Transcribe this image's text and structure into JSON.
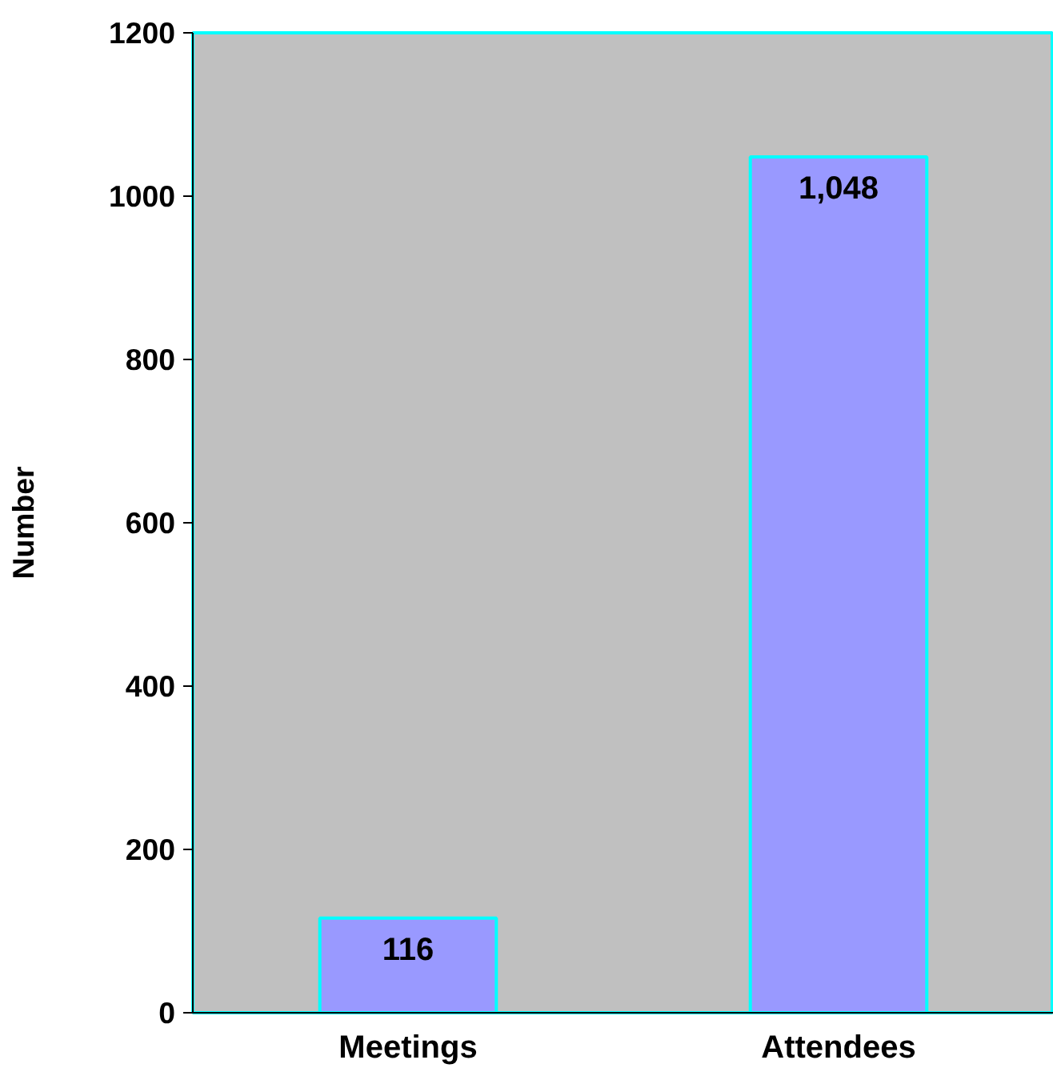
{
  "chart_data": {
    "type": "bar",
    "ylabel": "Number",
    "categories": [
      "Meetings",
      "Attendees"
    ],
    "values": [
      116,
      1048
    ],
    "value_labels": [
      "116",
      "1,048"
    ],
    "color": "#9999ff",
    "ylim": [
      0,
      1200
    ],
    "yticks": [
      0,
      200,
      400,
      600,
      800,
      1000,
      1200
    ],
    "grid": false
  }
}
